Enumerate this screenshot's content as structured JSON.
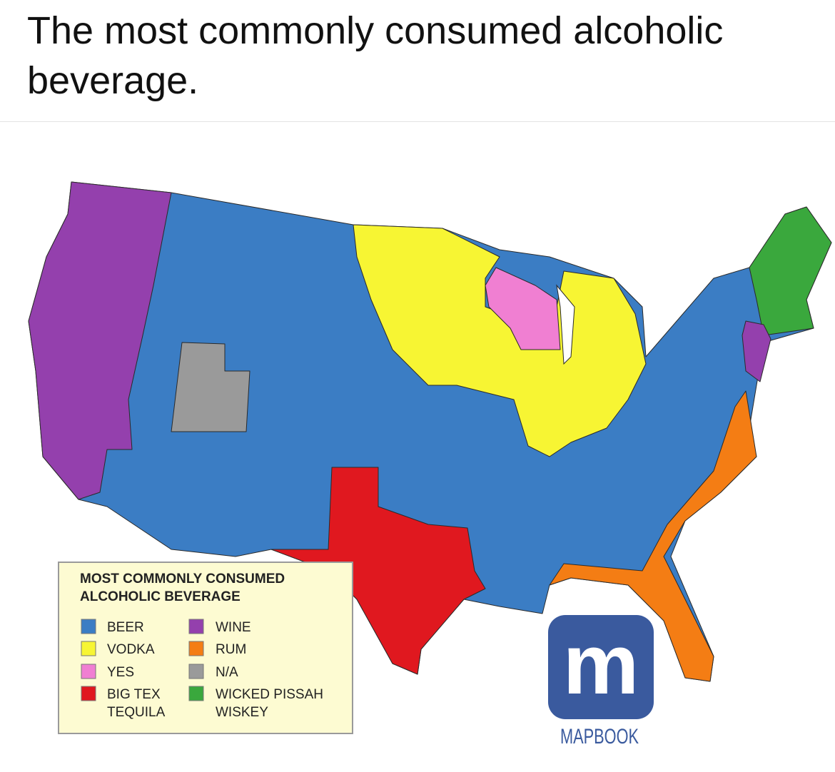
{
  "header": {
    "title": "The most commonly consumed alcoholic beverage."
  },
  "legend": {
    "title_lines": [
      "MOST COMMONLY CONSUMED",
      "ALCOHOLIC BEVERAGE"
    ],
    "items": [
      {
        "lines": [
          "BEER"
        ],
        "color": "#3b7dc4"
      },
      {
        "lines": [
          "VODKA"
        ],
        "color": "#f7f533"
      },
      {
        "lines": [
          "YES"
        ],
        "color": "#f07fd2"
      },
      {
        "lines": [
          "BIG TEX",
          "TEQUILA"
        ],
        "color": "#e0181f"
      },
      {
        "lines": [
          "WINE"
        ],
        "color": "#9440ad"
      },
      {
        "lines": [
          "RUM"
        ],
        "color": "#f47d14"
      },
      {
        "lines": [
          "N/A"
        ],
        "color": "#9a9a9a"
      },
      {
        "lines": [
          "WICKED PISSAH",
          "WISKEY"
        ],
        "color": "#3aa83d"
      }
    ]
  },
  "logo": {
    "mark": "m",
    "name": "MAPBOOK"
  }
}
